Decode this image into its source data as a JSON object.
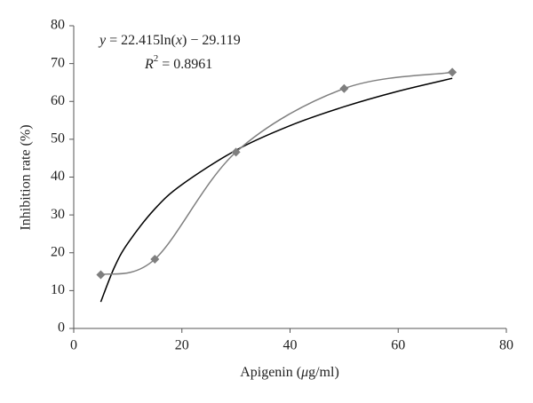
{
  "chart_data": {
    "type": "scatter",
    "x_label": [
      "Apigenin (",
      "μ",
      "g/ml)"
    ],
    "y_label": "Inhibition rate (%)",
    "equation": [
      "y",
      " = 22.415ln(",
      "x",
      ") − 29.119"
    ],
    "r_squared": [
      "R",
      "2",
      " = 0.8961"
    ],
    "series": [
      {
        "name": "Inhibition rate",
        "color": "#7f7f7f",
        "x": [
          5,
          15,
          30,
          50,
          70
        ],
        "values": [
          14.2,
          18.3,
          46.6,
          63.4,
          67.7
        ],
        "smooth": true
      }
    ],
    "trendline": {
      "color": "#000000",
      "x": [
        5,
        7.5,
        10,
        15,
        20,
        30,
        40,
        50,
        60,
        70
      ],
      "values": [
        7.0,
        16.1,
        22.5,
        31.6,
        38.0,
        47.1,
        53.6,
        58.6,
        62.7,
        66.1
      ]
    },
    "xlim": [
      0,
      80
    ],
    "xticks": [
      0,
      20,
      40,
      60,
      80
    ],
    "ylim": [
      0,
      80
    ],
    "yticks": [
      0,
      10,
      20,
      30,
      40,
      50,
      60,
      70,
      80
    ],
    "grid": false
  }
}
